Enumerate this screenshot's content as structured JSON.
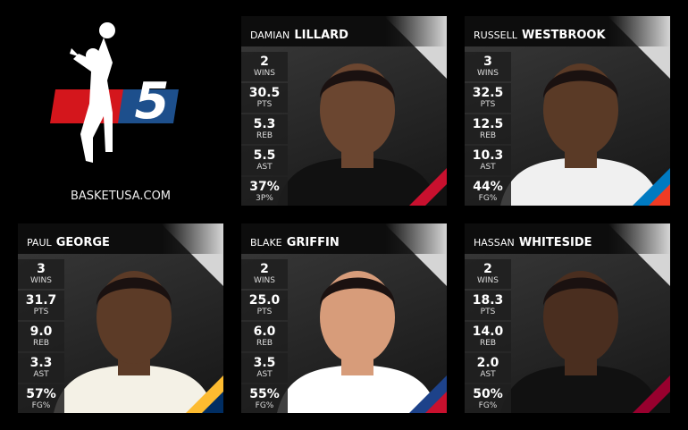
{
  "logo": {
    "number": "5",
    "site": "BASKETUSA.COM"
  },
  "players": [
    {
      "first": "DAMIAN",
      "last": "LILLARD",
      "stats": [
        {
          "value": "2",
          "label": "WINS"
        },
        {
          "value": "30.5",
          "label": "PTS"
        },
        {
          "value": "5.3",
          "label": "REB"
        },
        {
          "value": "5.5",
          "label": "AST"
        },
        {
          "value": "37%",
          "label": "3P%"
        }
      ]
    },
    {
      "first": "RUSSELL",
      "last": "WESTBROOK",
      "stats": [
        {
          "value": "3",
          "label": "WINS"
        },
        {
          "value": "32.5",
          "label": "PTS"
        },
        {
          "value": "12.5",
          "label": "REB"
        },
        {
          "value": "10.3",
          "label": "AST"
        },
        {
          "value": "44%",
          "label": "FG%"
        }
      ]
    },
    {
      "first": "PAUL",
      "last": "GEORGE",
      "stats": [
        {
          "value": "3",
          "label": "WINS"
        },
        {
          "value": "31.7",
          "label": "PTS"
        },
        {
          "value": "9.0",
          "label": "REB"
        },
        {
          "value": "3.3",
          "label": "AST"
        },
        {
          "value": "57%",
          "label": "FG%"
        }
      ]
    },
    {
      "first": "BLAKE",
      "last": "GRIFFIN",
      "stats": [
        {
          "value": "2",
          "label": "WINS"
        },
        {
          "value": "25.0",
          "label": "PTS"
        },
        {
          "value": "6.0",
          "label": "REB"
        },
        {
          "value": "3.5",
          "label": "AST"
        },
        {
          "value": "55%",
          "label": "FG%"
        }
      ]
    },
    {
      "first": "HASSAN",
      "last": "WHITESIDE",
      "stats": [
        {
          "value": "2",
          "label": "WINS"
        },
        {
          "value": "18.3",
          "label": "PTS"
        },
        {
          "value": "14.0",
          "label": "REB"
        },
        {
          "value": "2.0",
          "label": "AST"
        },
        {
          "value": "50%",
          "label": "FG%"
        }
      ]
    }
  ]
}
